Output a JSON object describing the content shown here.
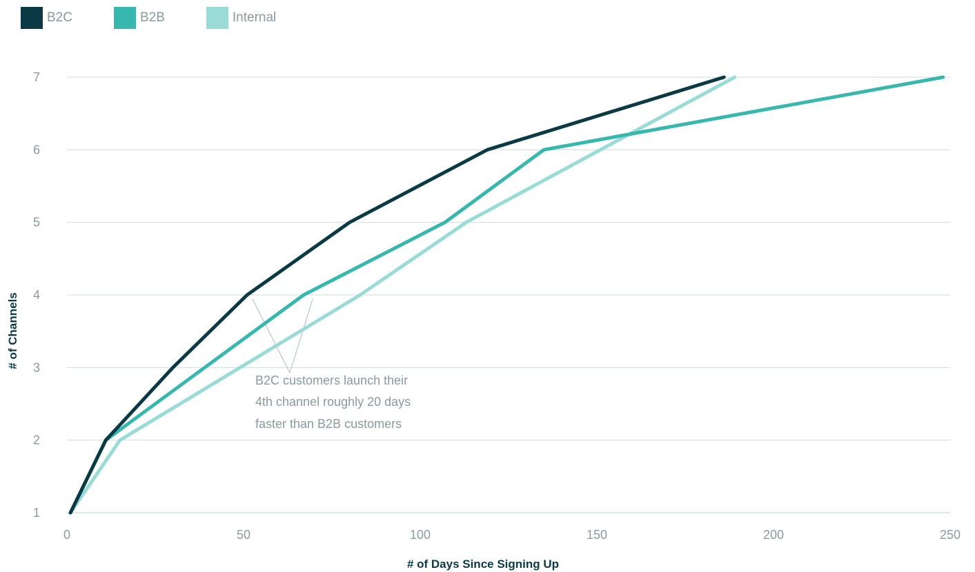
{
  "chart_data": {
    "type": "line",
    "title": "",
    "xlabel": "# of Days Since Signing Up",
    "ylabel": "# of Channels",
    "xlim": [
      0,
      250
    ],
    "ylim": [
      1,
      7
    ],
    "xticks": [
      0,
      50,
      100,
      150,
      200,
      250
    ],
    "xtick_labels": [
      "0",
      "50",
      "100",
      "150",
      "200",
      "250"
    ],
    "yticks": [
      1,
      2,
      3,
      4,
      5,
      6,
      7
    ],
    "ytick_labels": [
      "1",
      "2",
      "3",
      "4",
      "5",
      "6",
      "7"
    ],
    "grid": "horizontal",
    "legend_position": "top-left",
    "series": [
      {
        "name": "B2C",
        "color": "#0b3a44",
        "points": [
          [
            1,
            1
          ],
          [
            11,
            2
          ],
          [
            30,
            3
          ],
          [
            51,
            4
          ],
          [
            80,
            5
          ],
          [
            119,
            6
          ],
          [
            186,
            7
          ]
        ]
      },
      {
        "name": "B2B",
        "color": "#38b7ae",
        "points": [
          [
            1,
            1
          ],
          [
            11,
            2
          ],
          [
            67,
            4
          ],
          [
            107,
            5
          ],
          [
            135,
            6
          ],
          [
            248,
            7
          ]
        ]
      },
      {
        "name": "Internal",
        "color": "#99dbd6",
        "points": [
          [
            1,
            1
          ],
          [
            15,
            2
          ],
          [
            83,
            4
          ],
          [
            113,
            5
          ],
          [
            189,
            7
          ]
        ]
      }
    ],
    "annotations": [
      {
        "lines": [
          "B2C customers launch their",
          "4th channel roughly 20 days",
          "faster than B2B customers"
        ],
        "pointer_targets": [
          [
            51,
            4
          ],
          [
            68,
            4
          ]
        ]
      }
    ]
  },
  "colors": {
    "grid": "#cfdcdc",
    "axis": "#bfcfd0",
    "leader": "#b9c6c8"
  }
}
